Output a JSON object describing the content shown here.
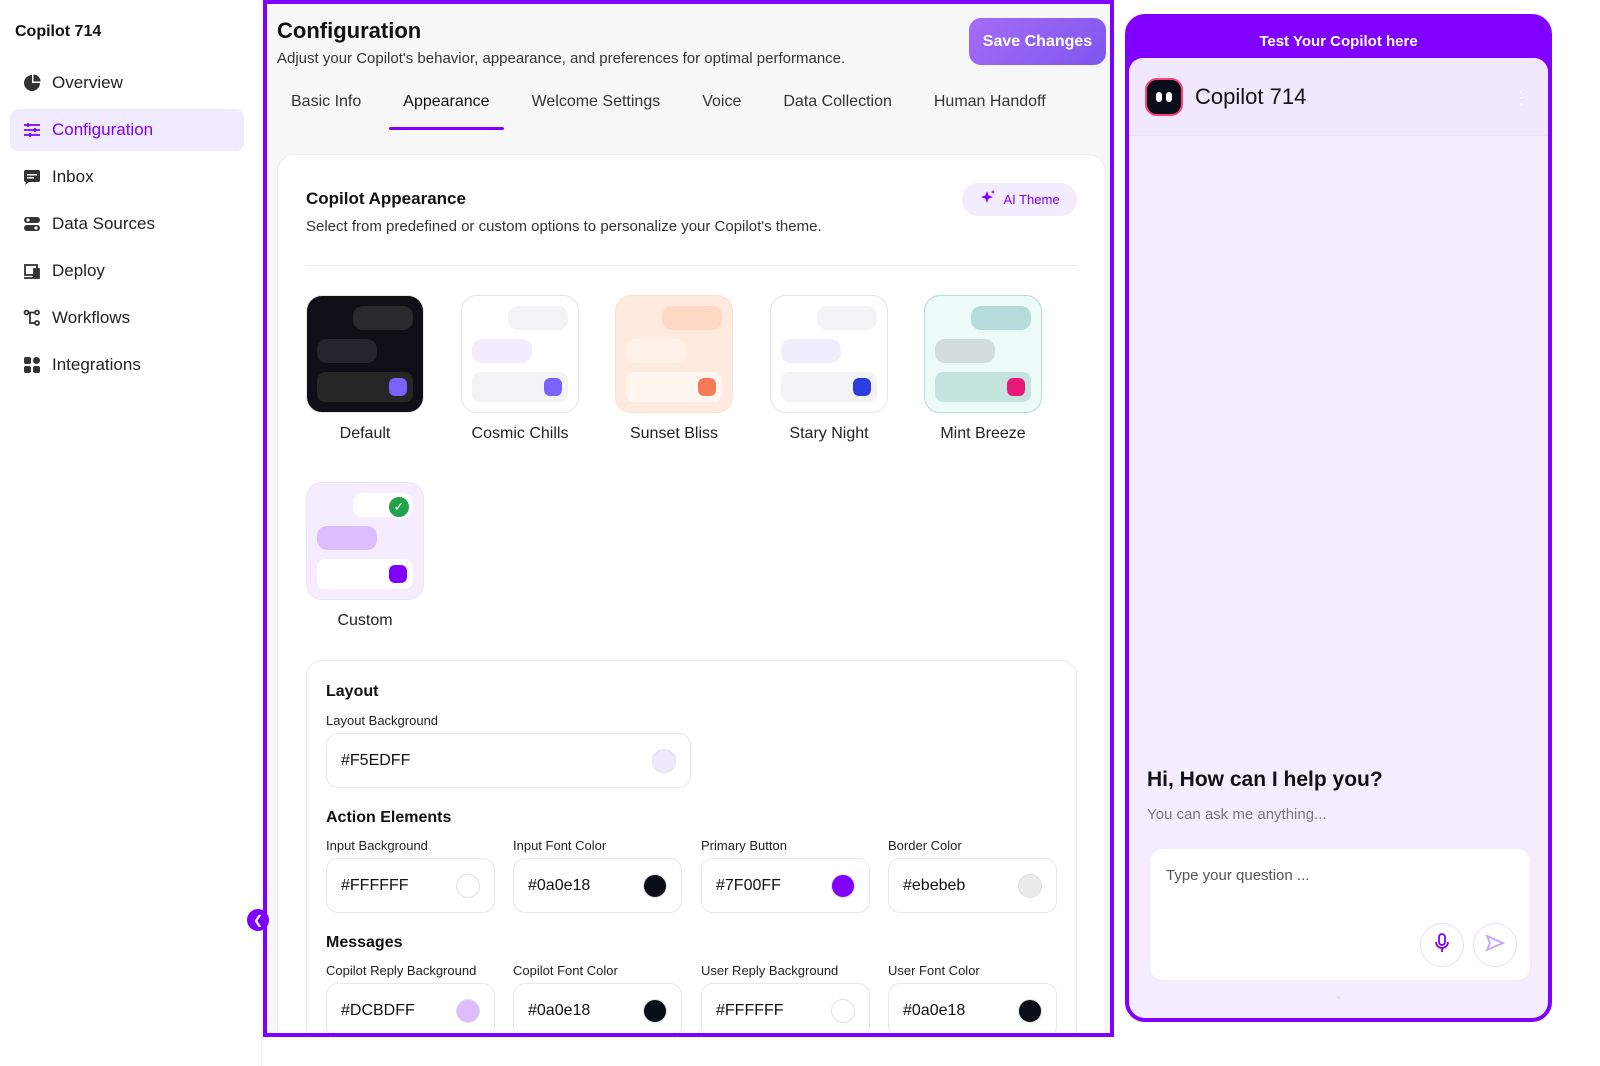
{
  "sidebar": {
    "app_title": "Copilot 714",
    "items": [
      {
        "label": "Overview",
        "icon": "pie-chart-icon"
      },
      {
        "label": "Configuration",
        "icon": "sliders-icon",
        "active": true
      },
      {
        "label": "Inbox",
        "icon": "chat-icon"
      },
      {
        "label": "Data Sources",
        "icon": "database-toggle-icon"
      },
      {
        "label": "Deploy",
        "icon": "devices-icon"
      },
      {
        "label": "Workflows",
        "icon": "workflow-icon"
      },
      {
        "label": "Integrations",
        "icon": "grid-icon"
      }
    ]
  },
  "header": {
    "title": "Configuration",
    "subtitle": "Adjust your Copilot's behavior, appearance, and preferences for optimal performance.",
    "save_label": "Save Changes"
  },
  "tabs": [
    {
      "label": "Basic Info"
    },
    {
      "label": "Appearance",
      "active": true
    },
    {
      "label": "Welcome Settings"
    },
    {
      "label": "Voice"
    },
    {
      "label": "Data Collection"
    },
    {
      "label": "Human Handoff"
    }
  ],
  "appearance": {
    "title": "Copilot Appearance",
    "subtitle": "Select from predefined or custom options to personalize your Copilot's theme.",
    "ai_theme_label": "AI Theme",
    "themes": [
      {
        "label": "Default",
        "bg": "#0e0f17",
        "b1": "#2a2a2e",
        "b2": "#25262c",
        "bar": "#262626",
        "dot": "#7b61ff"
      },
      {
        "label": "Cosmic Chills",
        "bg": "#ffffff",
        "b1": "#f3f3f5",
        "b2": "#f3ecff",
        "bar": "#f3f3f5",
        "dot": "#7b61ff"
      },
      {
        "label": "Sunset Bliss",
        "bg": "#ffeadf",
        "b1": "#ffd9c3",
        "b2": "#fff1e7",
        "bar": "#fff6f0",
        "dot": "#f37b57"
      },
      {
        "label": "Stary Night",
        "bg": "#ffffff",
        "b1": "#f3f3f5",
        "b2": "#eeeefd",
        "bar": "#f3f3f5",
        "dot": "#2d3ee0"
      },
      {
        "label": "Mint Breeze",
        "bg": "#ecfbf7",
        "b1": "#b4dcd8",
        "b2": "#d3dddb",
        "bar": "#c5e4e0",
        "dot": "#e8197a"
      },
      {
        "label": "Custom",
        "bg": "#f5edff",
        "b1": "#ffffff",
        "b2": "#dcbdff",
        "bar": "#ffffff",
        "dot": "#7f00ff",
        "selected": true
      }
    ]
  },
  "layout": {
    "title": "Layout",
    "bg_label": "Layout Background",
    "bg_value": "#F5EDFF",
    "bg_swatch": "#efe9fd"
  },
  "action": {
    "title": "Action Elements",
    "fields": [
      {
        "label": "Input Background",
        "value": "#FFFFFF",
        "swatch": "#ffffff"
      },
      {
        "label": "Input Font Color",
        "value": "#0a0e18",
        "swatch": "#0a0e18"
      },
      {
        "label": "Primary Button",
        "value": "#7F00FF",
        "swatch": "#7f00ff"
      },
      {
        "label": "Border Color",
        "value": "#ebebeb",
        "swatch": "#ebebeb"
      }
    ]
  },
  "messages": {
    "title": "Messages",
    "fields": [
      {
        "label": "Copilot Reply Background",
        "value": "#DCBDFF",
        "swatch": "#dcbdff"
      },
      {
        "label": "Copilot Font Color",
        "value": "#0a0e18",
        "swatch": "#0a0e18"
      },
      {
        "label": "User Reply Background",
        "value": "#FFFFFF",
        "swatch": "#ffffff"
      },
      {
        "label": "User Font Color",
        "value": "#0a0e18",
        "swatch": "#0a0e18"
      }
    ]
  },
  "preview": {
    "title": "Test Your Copilot here",
    "bot_name": "Copilot 714",
    "greeting": "Hi, How can I help you?",
    "greeting_sub": "You can ask me anything...",
    "input_placeholder": "Type your question ..."
  },
  "colors": {
    "accent": "#7f00ff",
    "active_nav_bg": "#f1ebff"
  }
}
